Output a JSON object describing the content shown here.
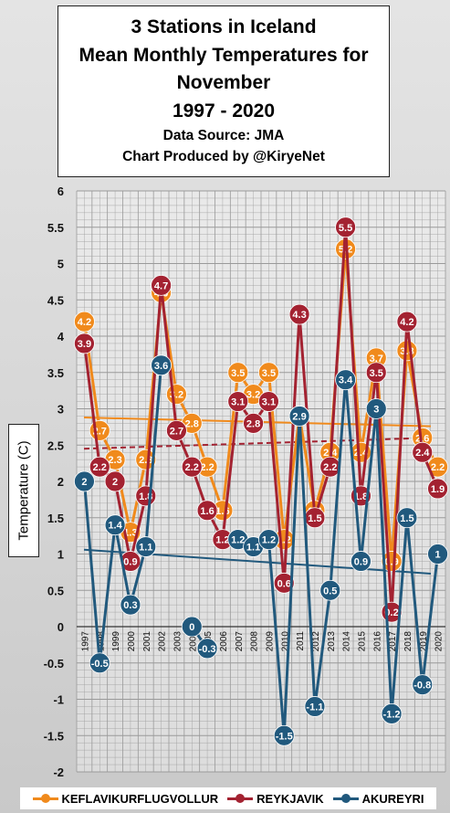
{
  "title": {
    "line1": "3 Stations in Iceland",
    "line2": "Mean Monthly Temperatures for",
    "line3": "November",
    "line4": "1997 - 2020",
    "source": "Data Source: JMA",
    "credit": "Chart Produced by @KiryeNet"
  },
  "colors": {
    "keflavik": "#f08a1c",
    "reykjavik": "#a32231",
    "akureyri": "#21597d",
    "grid": "#9a9a9a"
  },
  "chart_data": {
    "type": "line",
    "title": "3 Stations in Iceland Mean Monthly Temperatures for November 1997 - 2020",
    "xlabel": "",
    "ylabel": "Temperature (C)",
    "ylim": [
      -2,
      6
    ],
    "yticks": [
      "-2",
      "-1.5",
      "-1",
      "-0.5",
      "0",
      "0.5",
      "1",
      "1.5",
      "2",
      "2.5",
      "3",
      "3.5",
      "4",
      "4.5",
      "5",
      "5.5",
      "6"
    ],
    "grid": true,
    "legend_position": "bottom",
    "categories": [
      "1997",
      "1998",
      "1999",
      "2000",
      "2001",
      "2002",
      "2003",
      "2004",
      "2005",
      "2006",
      "2007",
      "2008",
      "2009",
      "2010",
      "2011",
      "2012",
      "2013",
      "2014",
      "2015",
      "2016",
      "2017",
      "2018",
      "2019",
      "2020"
    ],
    "series": [
      {
        "name": "KEFLAVIKURFLUGVOLLUR",
        "values": [
          4.2,
          2.7,
          2.3,
          1.3,
          2.3,
          4.6,
          3.2,
          2.8,
          2.2,
          1.6,
          3.5,
          3.2,
          3.5,
          1.2,
          2.9,
          1.6,
          2.4,
          5.2,
          2.4,
          3.7,
          0.9,
          3.8,
          2.6,
          2.2
        ],
        "labels": [
          "4.2",
          "2.7",
          "2.3",
          "1.3",
          "2.3",
          "4.6",
          "3.2",
          "2.8",
          "2.2",
          "1.6",
          "3.5",
          "3.2",
          "3.5",
          "1.2",
          "2.9",
          "1.6",
          "2.4",
          "5.2",
          "2.4",
          "3.7",
          "0.9",
          "3.8",
          "2.6",
          "2.2"
        ],
        "trend": [
          2.88,
          2.76
        ]
      },
      {
        "name": "REYKJAVIK",
        "values": [
          3.9,
          2.2,
          2.0,
          0.9,
          1.8,
          4.7,
          2.7,
          2.2,
          1.6,
          1.2,
          3.1,
          2.8,
          3.1,
          0.6,
          4.3,
          1.5,
          2.2,
          5.5,
          1.8,
          3.5,
          0.2,
          4.2,
          2.4,
          1.9
        ],
        "labels": [
          "3.9",
          "2.2",
          "2",
          "0.9",
          "1.8",
          "4.7",
          "2.7",
          "2.2",
          "1.6",
          "1.2",
          "3.1",
          "2.8",
          "3.1",
          "0.6",
          "4.3",
          "1.5",
          "2.2",
          "5.5",
          "1.8",
          "3.5",
          "0.2",
          "4.2",
          "2.4",
          "1.9"
        ],
        "trend": [
          2.45,
          2.6
        ]
      },
      {
        "name": "AKUREYRI",
        "values": [
          2.0,
          -0.5,
          1.4,
          0.3,
          1.1,
          3.6,
          null,
          0.0,
          -0.3,
          null,
          1.2,
          1.1,
          1.2,
          -1.5,
          2.9,
          -1.1,
          0.5,
          3.4,
          0.9,
          3.0,
          -1.2,
          1.5,
          -0.8,
          1.0
        ],
        "labels": [
          "2",
          "-0.5",
          "1.4",
          "0.3",
          "1.1",
          "3.6",
          "",
          "0",
          "-0.3",
          "",
          "1.2",
          "1.1",
          "1.2",
          "-1.5",
          "2.9",
          "-1.1",
          "0.5",
          "3.4",
          "0.9",
          "3",
          "-1.2",
          "1.5",
          "-0.8",
          "1"
        ],
        "trend": [
          1.06,
          0.73
        ]
      }
    ]
  }
}
